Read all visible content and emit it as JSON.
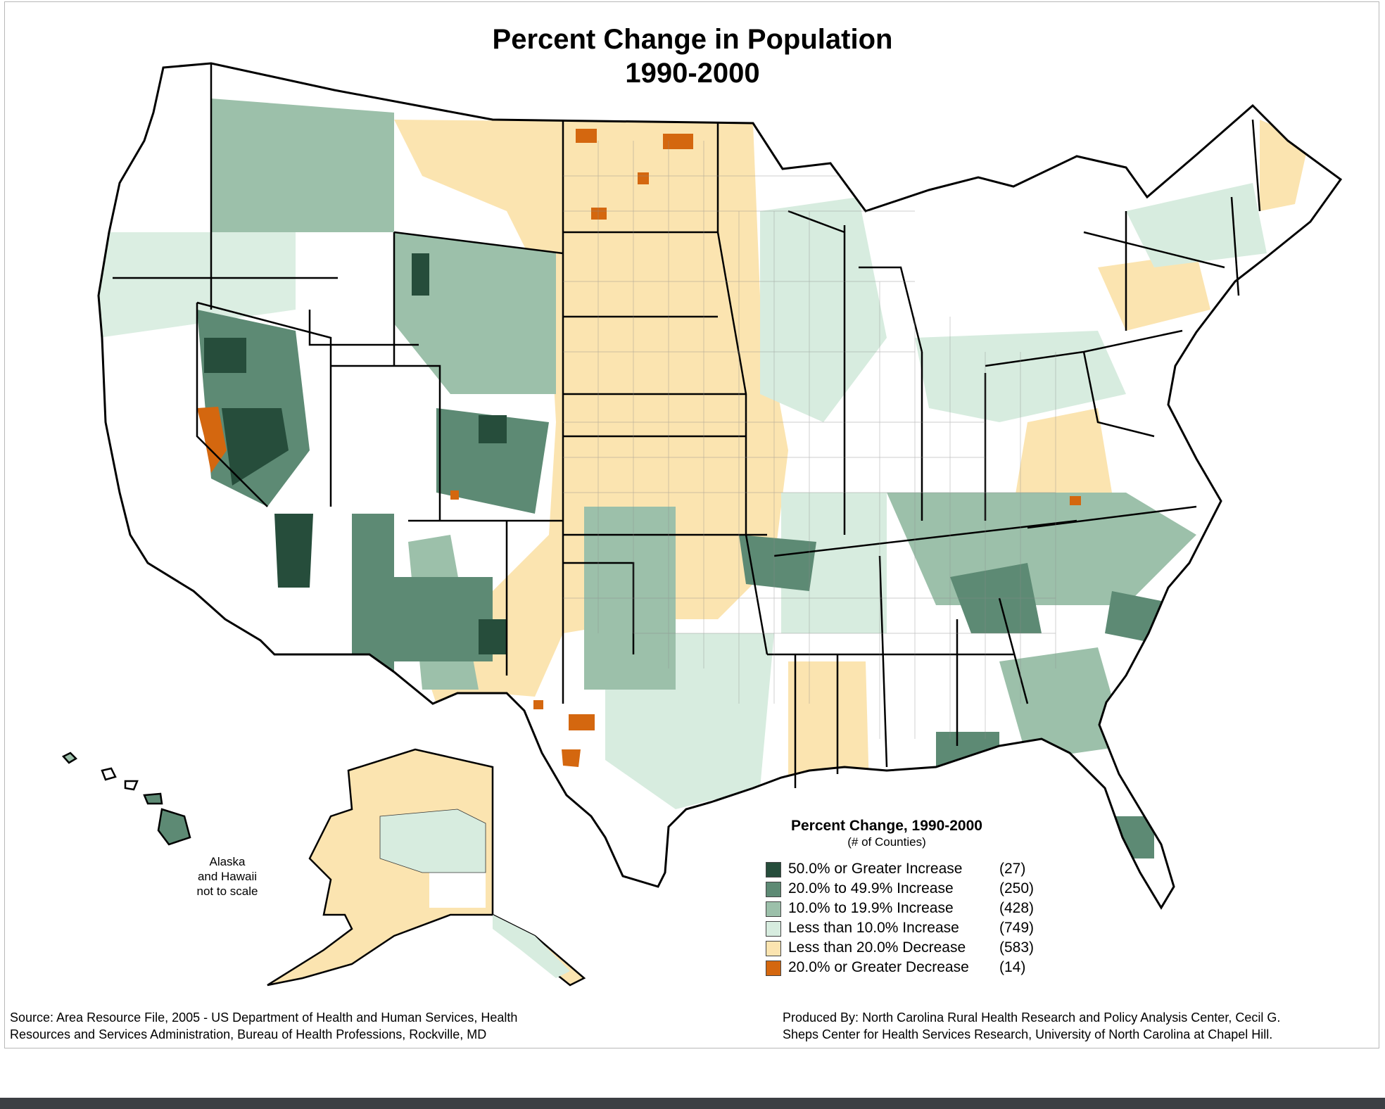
{
  "title_line1": "Percent Change in Population",
  "title_line2": "1990-2000",
  "inset_note": {
    "line1": "Alaska",
    "line2": "and Hawaii",
    "line3": "not to scale"
  },
  "legend": {
    "title": "Percent Change, 1990-2000",
    "subtitle": "(# of Counties)",
    "items": [
      {
        "label": "50.0% or Greater Increase",
        "count": "(27)",
        "color": "#264d3b"
      },
      {
        "label": "20.0% to 49.9% Increase",
        "count": "(250)",
        "color": "#5d8a74"
      },
      {
        "label": "10.0% to 19.9% Increase",
        "count": "(428)",
        "color": "#9cc0aa"
      },
      {
        "label": "Less than 10.0% Increase",
        "count": "(749)",
        "color": "#d7ecdf"
      },
      {
        "label": "Less than 20.0% Decrease",
        "count": "(583)",
        "color": "#fbe4b0"
      },
      {
        "label": "20.0% or Greater Decrease",
        "count": "(14)",
        "color": "#d4670f"
      }
    ],
    "no_data_color": "#ffffff"
  },
  "footer": {
    "source_line1": "Source: Area Resource File, 2005 - US Department of Health and Human Services, Health",
    "source_line2": "Resources and Services Administration, Bureau of Health Professions, Rockville, MD",
    "producer_line1": "Produced By: North Carolina Rural Health Research and Policy Analysis Center, Cecil G.",
    "producer_line2": "Sheps Center for Health Services Research, University of North Carolina at Chapel Hill."
  }
}
